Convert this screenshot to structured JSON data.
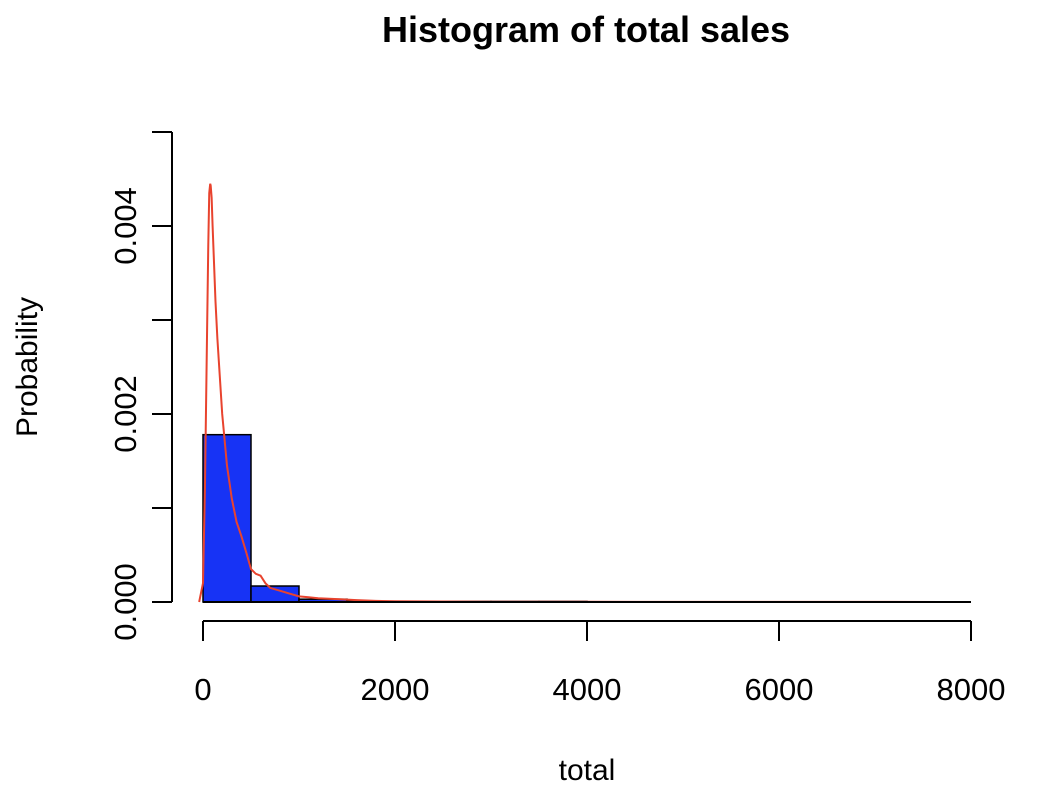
{
  "chart_data": {
    "type": "bar",
    "title": "Histogram of total sales",
    "xlabel": "total",
    "ylabel": "Probability",
    "xlim": [
      0,
      8000
    ],
    "ylim": [
      0,
      0.005
    ],
    "x_ticks": [
      0,
      2000,
      4000,
      6000,
      8000
    ],
    "x_tick_labels": [
      "0",
      "2000",
      "4000",
      "6000",
      "8000"
    ],
    "y_ticks": [
      0,
      0.001,
      0.002,
      0.003,
      0.004,
      0.005
    ],
    "y_tick_labels": [
      "0.000",
      "",
      "0.002",
      "",
      "0.004",
      ""
    ],
    "bins": [
      {
        "start": 0,
        "end": 500,
        "value": 0.00178
      },
      {
        "start": 500,
        "end": 1000,
        "value": 0.00017
      },
      {
        "start": 1000,
        "end": 1500,
        "value": 3e-05
      },
      {
        "start": 1500,
        "end": 2000,
        "value": 8e-06
      },
      {
        "start": 2000,
        "end": 2500,
        "value": 4e-06
      },
      {
        "start": 2500,
        "end": 3000,
        "value": 2e-06
      },
      {
        "start": 3000,
        "end": 3500,
        "value": 1e-06
      },
      {
        "start": 3500,
        "end": 4000,
        "value": 5e-07
      }
    ],
    "bar_color": "#1733F5",
    "density": {
      "color": "#E8432E",
      "x": [
        -40,
        0,
        20,
        40,
        55,
        65,
        75,
        80,
        90,
        100,
        115,
        130,
        150,
        175,
        200,
        250,
        300,
        350,
        400,
        450,
        500,
        550,
        600,
        650,
        700,
        800,
        900,
        1000,
        1100,
        1200,
        1400,
        1600,
        1800,
        2000,
        2500,
        3000,
        4000,
        5000,
        6000,
        7000,
        7680
      ],
      "y": [
        0,
        0.0002,
        0.0012,
        0.0027,
        0.0038,
        0.00435,
        0.00445,
        0.00443,
        0.0043,
        0.004,
        0.0036,
        0.0032,
        0.0028,
        0.0024,
        0.002,
        0.00145,
        0.0011,
        0.00085,
        0.0007,
        0.00053,
        0.00035,
        0.0003,
        0.00028,
        0.0002,
        0.00015,
        0.00012,
        9e-05,
        6e-05,
        5e-05,
        4e-05,
        3e-05,
        2e-05,
        1.2e-05,
        8e-06,
        5e-06,
        3e-06,
        2e-06,
        1e-06,
        1e-06,
        1e-06,
        5e-07
      ]
    },
    "grid": false,
    "legend": "none"
  }
}
